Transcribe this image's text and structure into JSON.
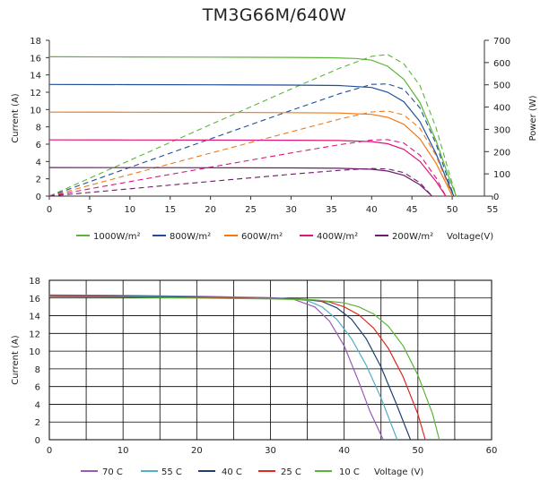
{
  "chart_data": [
    {
      "type": "line",
      "title": "TM3G66M/640W",
      "xlabel": "Voltage(V)",
      "ylabel": "Current (A)",
      "y2label": "Power (W)",
      "xlim": [
        0,
        55
      ],
      "ylim": [
        0,
        18
      ],
      "y2lim": [
        0,
        700
      ],
      "xticks": [
        0,
        5,
        10,
        15,
        20,
        25,
        30,
        35,
        40,
        45,
        50,
        55
      ],
      "yticks": [
        0,
        2,
        4,
        6,
        8,
        10,
        12,
        14,
        16,
        18
      ],
      "y2ticks": [
        0,
        100,
        200,
        300,
        400,
        500,
        600,
        700
      ],
      "grid": false,
      "legend_position": "bottom",
      "series": [
        {
          "name": "1000W/m²",
          "color": "#5cb538",
          "current": {
            "x": [
              0,
              10,
              20,
              30,
              35,
              38,
              40,
              42,
              44,
              46,
              48,
              49.5,
              50.5
            ],
            "y": [
              16.1,
              16.08,
              16.06,
              16.02,
              15.98,
              15.9,
              15.7,
              15.0,
              13.5,
              10.8,
              6.4,
              2.4,
              0
            ]
          },
          "power": {
            "x": [
              0,
              10,
              20,
              30,
              36,
              40,
              42,
              44,
              46,
              48,
              49.5,
              50.5
            ],
            "y": [
              0,
              161,
              321,
              481,
              574,
              628,
              636,
              594,
              497,
              307,
              119,
              0
            ]
          }
        },
        {
          "name": "800W/m²",
          "color": "#1f4e9a",
          "current": {
            "x": [
              0,
              10,
              20,
              30,
              36,
              40,
              42,
              44,
              46,
              48,
              49.5,
              50.2
            ],
            "y": [
              12.9,
              12.88,
              12.86,
              12.83,
              12.78,
              12.55,
              12.0,
              10.9,
              8.6,
              4.9,
              1.5,
              0
            ]
          },
          "power": {
            "x": [
              0,
              10,
              20,
              30,
              36,
              40,
              42,
              44,
              46,
              48,
              49.5,
              50.2
            ],
            "y": [
              0,
              129,
              257,
              385,
              460,
              502,
              504,
              480,
              396,
              235,
              74,
              0
            ]
          }
        },
        {
          "name": "600W/m²",
          "color": "#f07a1a",
          "current": {
            "x": [
              0,
              10,
              20,
              30,
              36,
              40,
              42,
              44,
              46,
              48,
              49.5,
              50.0
            ],
            "y": [
              9.7,
              9.69,
              9.67,
              9.64,
              9.6,
              9.45,
              9.1,
              8.3,
              6.6,
              3.8,
              1.0,
              0
            ]
          },
          "power": {
            "x": [
              0,
              10,
              20,
              30,
              36,
              40,
              42,
              44,
              46,
              48,
              49.5,
              50.0
            ],
            "y": [
              0,
              97,
              193,
              289,
              346,
              378,
              382,
              365,
              304,
              182,
              50,
              0
            ]
          }
        },
        {
          "name": "400W/m²",
          "color": "#e0157a",
          "current": {
            "x": [
              0,
              10,
              20,
              30,
              36,
              40,
              42,
              44,
              46,
              48,
              49.2
            ],
            "y": [
              6.5,
              6.49,
              6.48,
              6.46,
              6.42,
              6.3,
              6.05,
              5.4,
              4.0,
              1.7,
              0
            ]
          },
          "power": {
            "x": [
              0,
              10,
              20,
              30,
              36,
              40,
              42,
              44,
              46,
              48,
              49.2
            ],
            "y": [
              0,
              65,
              130,
              194,
              231,
              252,
              254,
              238,
              184,
              82,
              0
            ]
          }
        },
        {
          "name": "200W/m²",
          "color": "#6b1d6b",
          "current": {
            "x": [
              0,
              10,
              20,
              30,
              36,
              40,
              42,
              44,
              46,
              47.5
            ],
            "y": [
              3.3,
              3.29,
              3.28,
              3.26,
              3.22,
              3.1,
              2.9,
              2.4,
              1.3,
              0
            ]
          },
          "power": {
            "x": [
              0,
              10,
              20,
              30,
              36,
              40,
              42,
              44,
              46,
              47.5
            ],
            "y": [
              0,
              33,
              66,
              98,
              116,
              124,
              122,
              106,
              60,
              0
            ]
          }
        }
      ]
    },
    {
      "type": "line",
      "title": "",
      "xlabel": "Voltage (V)",
      "ylabel": "Current (A)",
      "xlim": [
        0,
        60
      ],
      "ylim": [
        0,
        18
      ],
      "xticks": [
        0,
        10,
        20,
        30,
        40,
        50,
        60
      ],
      "yticks": [
        0,
        2,
        4,
        6,
        8,
        10,
        12,
        14,
        16,
        18
      ],
      "grid": true,
      "legend_position": "bottom",
      "series": [
        {
          "name": "70 C",
          "color": "#9b59b6",
          "x": [
            0,
            10,
            20,
            30,
            33,
            36,
            38,
            40,
            42,
            43.5,
            45.3
          ],
          "y": [
            16.35,
            16.3,
            16.2,
            16.05,
            15.9,
            15.0,
            13.4,
            10.6,
            6.5,
            3.2,
            0
          ]
        },
        {
          "name": "55 C",
          "color": "#4fb0c6",
          "x": [
            0,
            10,
            20,
            30,
            33,
            35,
            37,
            39,
            41,
            43,
            45,
            47.2
          ],
          "y": [
            16.3,
            16.25,
            16.15,
            16.0,
            15.9,
            15.7,
            15.0,
            13.6,
            11.4,
            8.4,
            4.7,
            0
          ]
        },
        {
          "name": "40 C",
          "color": "#1f3f73",
          "x": [
            0,
            10,
            20,
            30,
            34,
            37,
            39,
            41,
            43,
            45,
            47,
            49.0
          ],
          "y": [
            16.25,
            16.2,
            16.1,
            15.95,
            15.9,
            15.6,
            14.9,
            13.6,
            11.4,
            8.2,
            4.2,
            0
          ]
        },
        {
          "name": "25 C",
          "color": "#e02a22",
          "x": [
            0,
            10,
            20,
            30,
            35,
            38,
            40,
            42,
            44,
            46,
            48,
            50,
            51.0
          ],
          "y": [
            16.2,
            16.15,
            16.05,
            15.95,
            15.85,
            15.55,
            15.0,
            14.1,
            12.6,
            10.3,
            7.1,
            2.9,
            0
          ]
        },
        {
          "name": "10 C",
          "color": "#5cb538",
          "x": [
            0,
            10,
            20,
            30,
            36,
            40,
            42,
            44,
            46,
            48,
            50,
            52,
            52.9
          ],
          "y": [
            16.15,
            16.1,
            16.0,
            15.9,
            15.8,
            15.45,
            15.0,
            14.2,
            12.8,
            10.6,
            7.3,
            2.9,
            0
          ]
        }
      ]
    }
  ]
}
